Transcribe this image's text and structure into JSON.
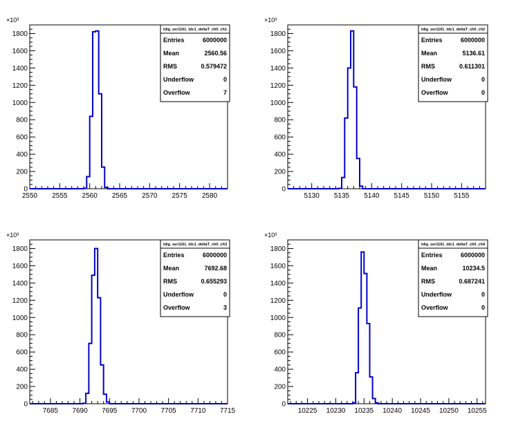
{
  "chart_data": [
    {
      "type": "bar",
      "title": "tdig_ser1161_tdc1_deltaT_ch0_ch1",
      "x_exponent_label": "",
      "y_exponent_label": "×10³",
      "xlim": [
        2550,
        2583
      ],
      "ylim": [
        0,
        1900
      ],
      "xticks": [
        2550,
        2555,
        2560,
        2565,
        2570,
        2575,
        2580
      ],
      "yticks": [
        0,
        200,
        400,
        600,
        800,
        1000,
        1200,
        1400,
        1600,
        1800
      ],
      "bin_width": 0.5,
      "bins": [
        [
          2558.5,
          0
        ],
        [
          2559.0,
          5
        ],
        [
          2559.5,
          140
        ],
        [
          2560.0,
          840
        ],
        [
          2560.5,
          1820
        ],
        [
          2561.0,
          1830
        ],
        [
          2561.5,
          1100
        ],
        [
          2562.0,
          250
        ],
        [
          2562.5,
          15
        ],
        [
          2563.0,
          0
        ]
      ],
      "stats": {
        "title": "tdig_ser1161_tdc1_deltaT_ch0_ch1",
        "rows": [
          {
            "label": "Entries",
            "value": "6000000"
          },
          {
            "label": "Mean",
            "value": "2560.56"
          },
          {
            "label": "RMS",
            "value": "0.579472"
          },
          {
            "label": "Underflow",
            "value": "0"
          },
          {
            "label": "Overflow",
            "value": "7"
          }
        ]
      }
    },
    {
      "type": "bar",
      "title": "tdig_ser1161_tdc1_deltaT_ch0_ch2",
      "x_exponent_label": "",
      "y_exponent_label": "×10³",
      "xlim": [
        5126,
        5159
      ],
      "ylim": [
        0,
        1900
      ],
      "xticks": [
        5130,
        5135,
        5140,
        5145,
        5150,
        5155
      ],
      "yticks": [
        0,
        200,
        400,
        600,
        800,
        1000,
        1200,
        1400,
        1600,
        1800
      ],
      "bin_width": 0.5,
      "bins": [
        [
          5134.0,
          0
        ],
        [
          5134.5,
          5
        ],
        [
          5135.0,
          130
        ],
        [
          5135.5,
          820
        ],
        [
          5136.0,
          1400
        ],
        [
          5136.5,
          1830
        ],
        [
          5137.0,
          1180
        ],
        [
          5137.5,
          350
        ],
        [
          5138.0,
          30
        ],
        [
          5138.5,
          0
        ]
      ],
      "stats": {
        "title": "tdig_ser1161_tdc1_deltaT_ch0_ch2",
        "rows": [
          {
            "label": "Entries",
            "value": "6000000"
          },
          {
            "label": "Mean",
            "value": "5136.61"
          },
          {
            "label": "RMS",
            "value": "0.611301"
          },
          {
            "label": "Underflow",
            "value": "0"
          },
          {
            "label": "Overflow",
            "value": "0"
          }
        ]
      }
    },
    {
      "type": "bar",
      "title": "tdig_ser1161_tdc1_deltaT_ch0_ch3",
      "x_exponent_label": "",
      "y_exponent_label": "×10³",
      "xlim": [
        7681.5,
        7715
      ],
      "ylim": [
        0,
        1900
      ],
      "xticks": [
        7685,
        7690,
        7695,
        7700,
        7705,
        7710,
        7715
      ],
      "yticks": [
        0,
        200,
        400,
        600,
        800,
        1000,
        1200,
        1400,
        1600,
        1800
      ],
      "bin_width": 0.5,
      "bins": [
        [
          7690.0,
          0
        ],
        [
          7690.5,
          5
        ],
        [
          7691.0,
          120
        ],
        [
          7691.5,
          700
        ],
        [
          7692.0,
          1490
        ],
        [
          7692.5,
          1800
        ],
        [
          7693.0,
          1230
        ],
        [
          7693.5,
          450
        ],
        [
          7694.0,
          110
        ],
        [
          7694.5,
          20
        ],
        [
          7695.0,
          0
        ]
      ],
      "stats": {
        "title": "tdig_ser1161_tdc1_deltaT_ch0_ch3",
        "rows": [
          {
            "label": "Entries",
            "value": "6000000"
          },
          {
            "label": "Mean",
            "value": "7692.68"
          },
          {
            "label": "RMS",
            "value": "0.655293"
          },
          {
            "label": "Underflow",
            "value": "0"
          },
          {
            "label": "Overflow",
            "value": "3"
          }
        ]
      }
    },
    {
      "type": "bar",
      "title": "tdig_ser1161_tdc1_deltaT_ch0_ch4",
      "x_exponent_label": "",
      "y_exponent_label": "×10³",
      "xlim": [
        10221.5,
        10256.5
      ],
      "ylim": [
        0,
        1900
      ],
      "xticks": [
        10225,
        10230,
        10235,
        10240,
        10245,
        10250,
        10255
      ],
      "yticks": [
        0,
        200,
        400,
        600,
        800,
        1000,
        1200,
        1400,
        1600,
        1800
      ],
      "bin_width": 0.5,
      "bins": [
        [
          10232.5,
          0
        ],
        [
          10233.0,
          10
        ],
        [
          10233.5,
          360
        ],
        [
          10234.0,
          1110
        ],
        [
          10234.5,
          1760
        ],
        [
          10235.0,
          1510
        ],
        [
          10235.5,
          930
        ],
        [
          10236.0,
          310
        ],
        [
          10236.5,
          60
        ],
        [
          10237.0,
          10
        ],
        [
          10237.5,
          0
        ]
      ],
      "stats": {
        "title": "tdig_ser1161_tdc1_deltaT_ch0_ch4",
        "rows": [
          {
            "label": "Entries",
            "value": "6000000"
          },
          {
            "label": "Mean",
            "value": "10234.5"
          },
          {
            "label": "RMS",
            "value": "0.687241"
          },
          {
            "label": "Underflow",
            "value": "0"
          },
          {
            "label": "Overflow",
            "value": "0"
          }
        ]
      }
    }
  ],
  "colors": {
    "line": "#0000cc",
    "axis": "#000000",
    "background": "#ffffff"
  }
}
